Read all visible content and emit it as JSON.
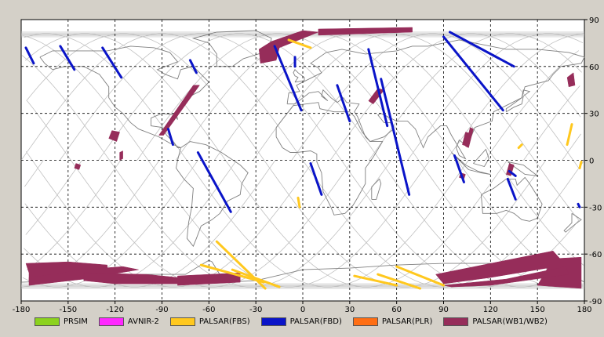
{
  "map": {
    "x_ticks": [
      "-180",
      "-150",
      "-120",
      "-90",
      "-60",
      "-30",
      "0",
      "30",
      "60",
      "90",
      "120",
      "150",
      "180"
    ],
    "y_ticks": [
      "90",
      "60",
      "30",
      "0",
      "-30",
      "-60",
      "-90"
    ],
    "x_range": [
      -180,
      180
    ],
    "y_range": [
      -90,
      90
    ],
    "grid": "dashed",
    "background": "#ffffff",
    "land_color": "#808080",
    "orbit_color": "#c0c0c0"
  },
  "legend": [
    {
      "label": "PRSIM",
      "color": "#8cd21e"
    },
    {
      "label": "AVNIR-2",
      "color": "#ff28ff"
    },
    {
      "label": "PALSAR(FBS)",
      "color": "#ffc81e"
    },
    {
      "label": "PALSAR(FBD)",
      "color": "#0a14c8"
    },
    {
      "label": "PALSAR(PLR)",
      "color": "#ff6e14"
    },
    {
      "label": "PALSAR(WB1/WB2)",
      "color": "#962d5a"
    }
  ],
  "swaths": {
    "FBD": [
      [
        [
          -177,
          72
        ],
        [
          -172,
          62
        ]
      ],
      [
        [
          -155,
          73
        ],
        [
          -146,
          58
        ]
      ],
      [
        [
          -128,
          72
        ],
        [
          -116,
          53
        ]
      ],
      [
        [
          -72,
          64
        ],
        [
          -68,
          56
        ]
      ],
      [
        [
          -86,
          20
        ],
        [
          -83,
          10
        ]
      ],
      [
        [
          -67,
          5
        ],
        [
          -46,
          -33
        ]
      ],
      [
        [
          -18,
          73
        ],
        [
          -1,
          32
        ]
      ],
      [
        [
          -5,
          66
        ],
        [
          -5,
          60
        ]
      ],
      [
        [
          22,
          48
        ],
        [
          30,
          25
        ]
      ],
      [
        [
          5,
          -2
        ],
        [
          12,
          -22
        ]
      ],
      [
        [
          42,
          71
        ],
        [
          54,
          22
        ]
      ],
      [
        [
          90,
          79
        ],
        [
          128,
          32
        ]
      ],
      [
        [
          94,
          82
        ],
        [
          135,
          60
        ]
      ],
      [
        [
          50,
          52
        ],
        [
          68,
          -22
        ]
      ],
      [
        [
          132,
          -7
        ],
        [
          136,
          -10
        ]
      ],
      [
        [
          131,
          -12
        ],
        [
          136,
          -25
        ]
      ],
      [
        [
          97,
          3
        ],
        [
          103,
          -14
        ]
      ],
      [
        [
          176,
          -28
        ],
        [
          177,
          -30
        ]
      ]
    ],
    "FBS": [
      [
        [
          -9,
          77
        ],
        [
          5,
          72
        ]
      ],
      [
        [
          -55,
          -52
        ],
        [
          -24,
          -82
        ]
      ],
      [
        [
          -65,
          -67
        ],
        [
          -25,
          -78
        ]
      ],
      [
        [
          -45,
          -70
        ],
        [
          -15,
          -81
        ]
      ],
      [
        [
          60,
          -68
        ],
        [
          90,
          -80
        ]
      ],
      [
        [
          48,
          -73
        ],
        [
          75,
          -82
        ]
      ],
      [
        [
          33,
          -74
        ],
        [
          60,
          -80
        ]
      ],
      [
        [
          -3,
          -24
        ],
        [
          -2,
          -30
        ]
      ],
      [
        [
          172,
          23
        ],
        [
          169,
          10
        ]
      ],
      [
        [
          178,
          -1
        ],
        [
          177,
          -5
        ]
      ],
      [
        [
          140,
          10
        ],
        [
          138,
          8
        ]
      ]
    ],
    "WB": [
      {
        "poly": [
          [
            10,
            84
          ],
          [
            70,
            85
          ],
          [
            70,
            82
          ],
          [
            10,
            80
          ]
        ]
      },
      {
        "poly": [
          [
            -20,
            76
          ],
          [
            0,
            83
          ],
          [
            10,
            82
          ],
          [
            -15,
            72
          ],
          [
            -17,
            64
          ],
          [
            -27,
            62
          ],
          [
            -28,
            71
          ]
        ]
      },
      {
        "poly": [
          [
            -70,
            48
          ],
          [
            -66,
            48
          ],
          [
            -89,
            16
          ],
          [
            -92,
            16
          ]
        ]
      },
      {
        "poly": [
          [
            -177,
            -66
          ],
          [
            -150,
            -65
          ],
          [
            -125,
            -67
          ],
          [
            -125,
            -71
          ],
          [
            -150,
            -73
          ],
          [
            -175,
            -78
          ],
          [
            -175,
            -72
          ]
        ]
      },
      {
        "poly": [
          [
            -175,
            -75
          ],
          [
            -140,
            -70
          ],
          [
            -115,
            -68
          ],
          [
            -105,
            -70
          ],
          [
            -140,
            -76
          ],
          [
            -175,
            -80
          ]
        ]
      },
      {
        "poly": [
          [
            -140,
            -72
          ],
          [
            -100,
            -73
          ],
          [
            -80,
            -75
          ],
          [
            -80,
            -79
          ],
          [
            -120,
            -79
          ],
          [
            -140,
            -77
          ]
        ]
      },
      {
        "poly": [
          [
            -80,
            -74
          ],
          [
            -40,
            -72
          ],
          [
            -40,
            -78
          ],
          [
            -80,
            -80
          ]
        ]
      },
      {
        "poly": [
          [
            85,
            -73
          ],
          [
            160,
            -58
          ],
          [
            168,
            -67
          ],
          [
            120,
            -75
          ],
          [
            90,
            -79
          ]
        ]
      },
      {
        "poly": [
          [
            160,
            -63
          ],
          [
            178,
            -62
          ],
          [
            178,
            -82
          ],
          [
            150,
            -80
          ]
        ]
      },
      {
        "poly": [
          [
            90,
            -80
          ],
          [
            130,
            -76
          ],
          [
            168,
            -68
          ],
          [
            170,
            -73
          ],
          [
            120,
            -80
          ],
          [
            95,
            -81
          ]
        ]
      },
      {
        "poly": [
          [
            -124,
            14
          ],
          [
            -122,
            19
          ],
          [
            -117,
            18
          ],
          [
            -119,
            12
          ]
        ]
      },
      {
        "poly": [
          [
            48,
            46
          ],
          [
            52,
            45
          ],
          [
            45,
            36
          ],
          [
            42,
            38
          ]
        ]
      },
      {
        "poly": [
          [
            107,
            21
          ],
          [
            109,
            20
          ],
          [
            106,
            8
          ],
          [
            104,
            9
          ]
        ]
      },
      {
        "poly": [
          [
            132,
            -2
          ],
          [
            135,
            -3
          ],
          [
            133,
            -10
          ],
          [
            130,
            -9
          ]
        ]
      },
      {
        "poly": [
          [
            104,
            18
          ],
          [
            108,
            17
          ],
          [
            105,
            9
          ],
          [
            102,
            10
          ]
        ]
      },
      {
        "poly": [
          [
            169,
            53
          ],
          [
            173,
            56
          ],
          [
            174,
            48
          ],
          [
            170,
            47
          ]
        ]
      },
      {
        "poly": [
          [
            -145,
            -2
          ],
          [
            -142,
            -3
          ],
          [
            -143,
            -6
          ],
          [
            -146,
            -5
          ]
        ]
      },
      {
        "poly": [
          [
            101,
            -8
          ],
          [
            104,
            -9
          ],
          [
            103,
            -12
          ],
          [
            100,
            -11
          ]
        ]
      },
      {
        "poly": [
          [
            -117,
            5
          ],
          [
            -115,
            6
          ],
          [
            -115,
            1
          ],
          [
            -117,
            0
          ]
        ]
      }
    ]
  }
}
